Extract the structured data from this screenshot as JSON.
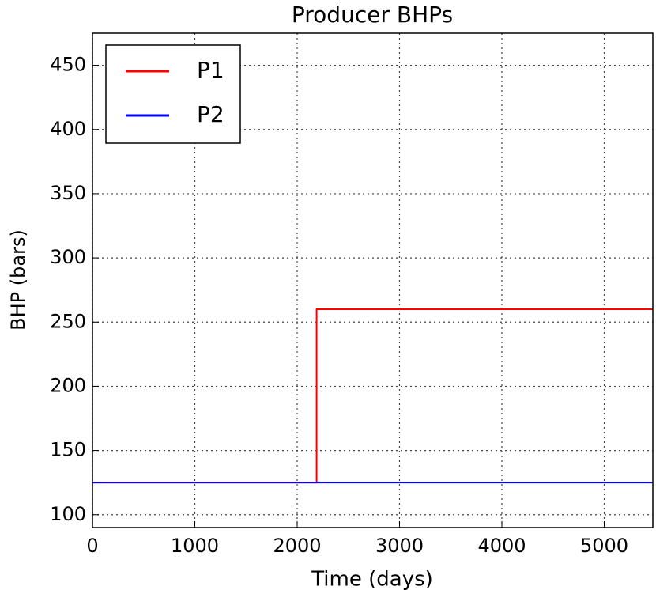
{
  "chart_data": {
    "type": "line",
    "title": "Producer BHPs",
    "x_label": "Time (days)",
    "y_label": "BHP (bars)",
    "series": [
      {
        "name": "P1",
        "color": "#ff0000",
        "x": [
          0,
          2190,
          2190,
          5475
        ],
        "values": [
          125,
          125,
          260,
          260
        ]
      },
      {
        "name": "P2",
        "color": "#0000ff",
        "x": [
          0,
          5475
        ],
        "values": [
          125,
          125
        ]
      }
    ],
    "xlim": [
      0,
      5475
    ],
    "xticks": [
      0,
      1000,
      2000,
      3000,
      4000,
      5000
    ],
    "ylim": [
      90,
      475
    ],
    "yticks": [
      100,
      150,
      200,
      250,
      300,
      350,
      400,
      450
    ],
    "grid": true,
    "legend": "upper left"
  }
}
